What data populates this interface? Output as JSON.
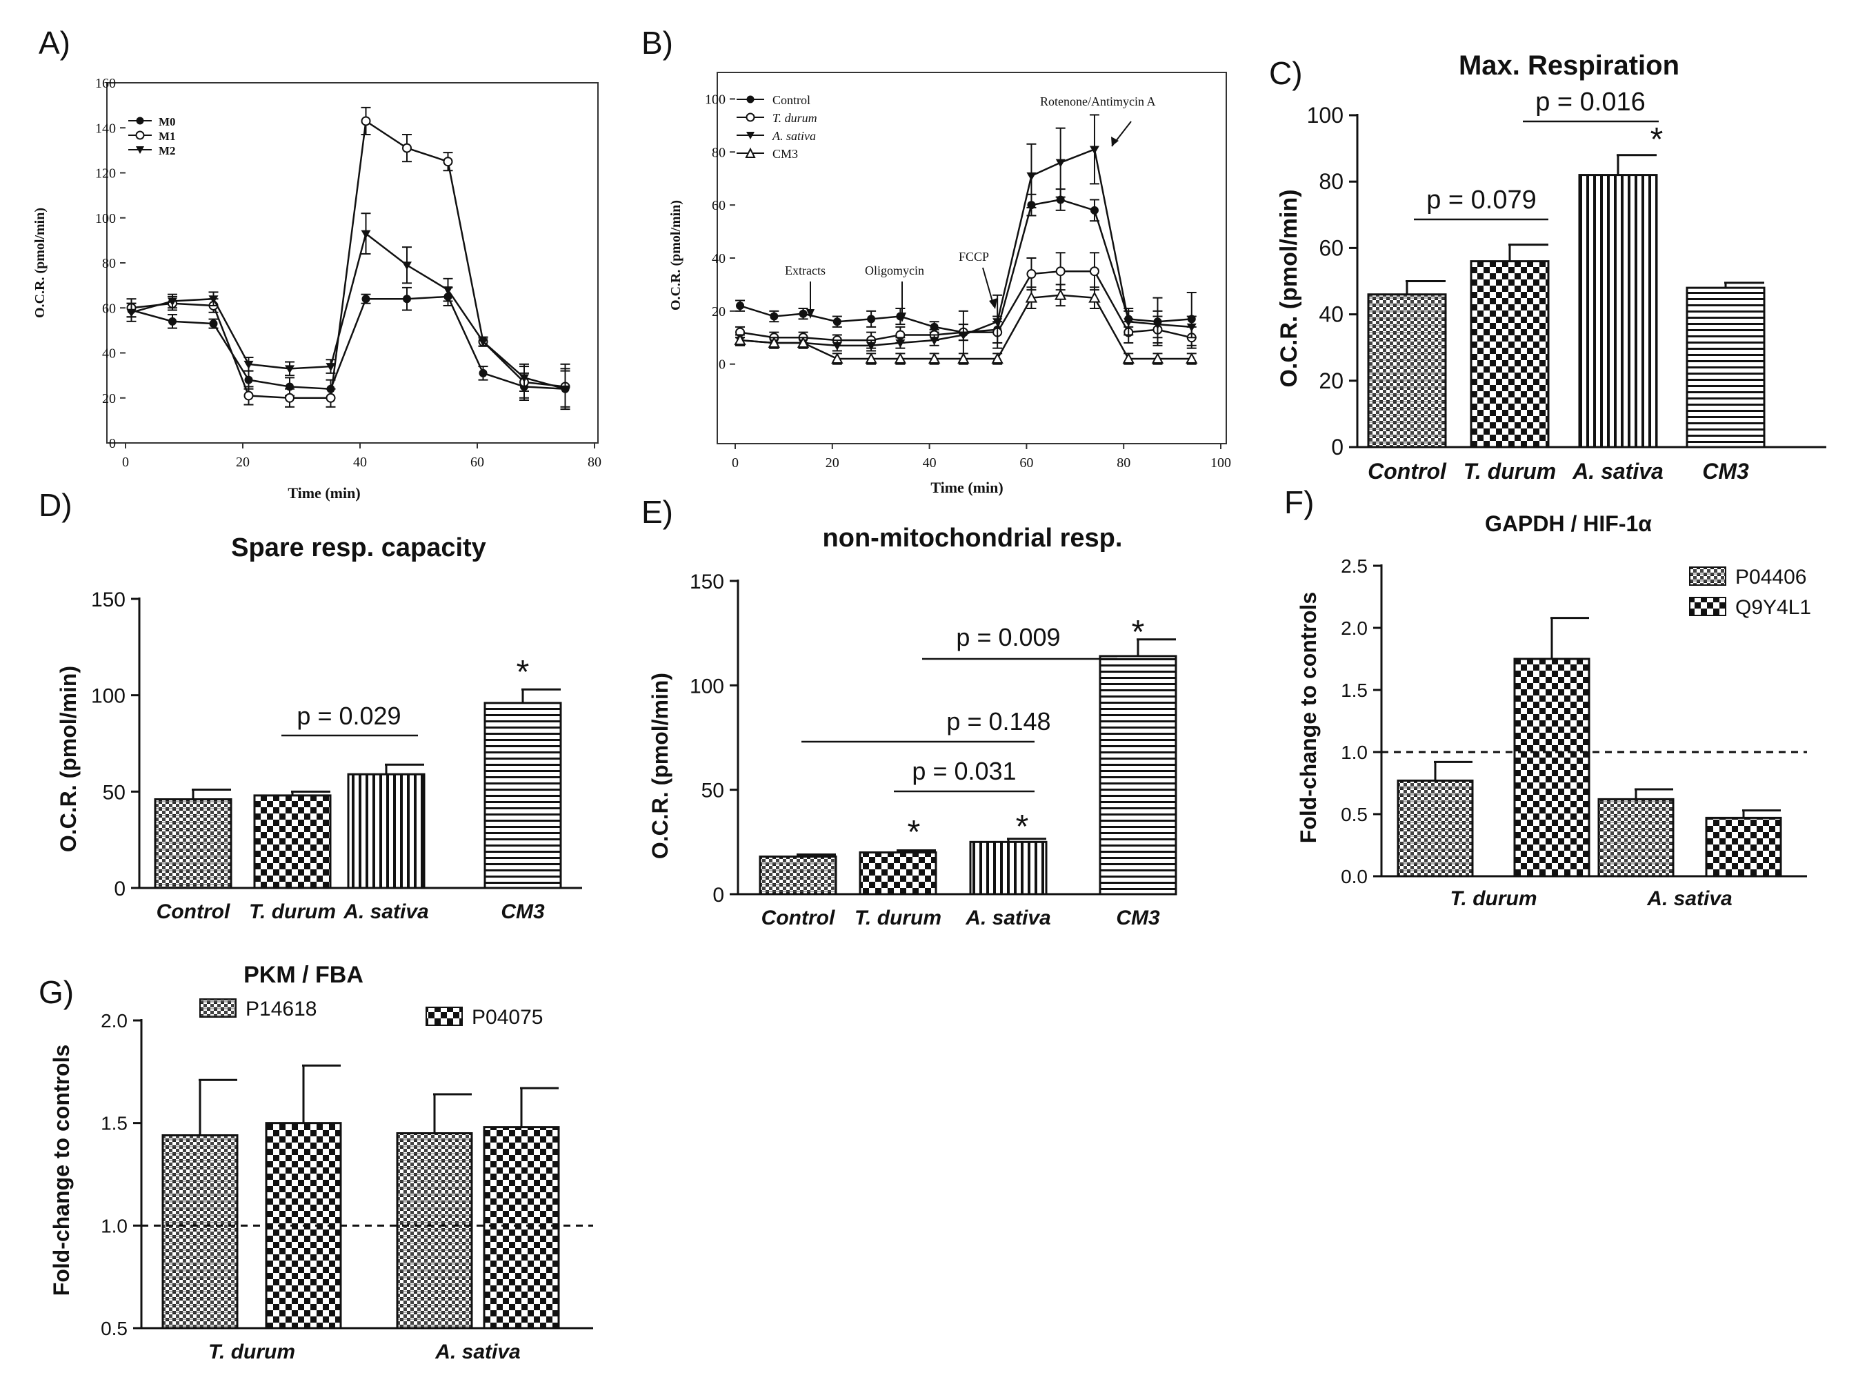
{
  "figure": {
    "title": ""
  },
  "panels": {
    "A": {
      "letter": "A)"
    },
    "B": {
      "letter": "B)",
      "annotations": {
        "extracts": "Extracts",
        "oligomycin": "Oligomycin",
        "fccp": "FCCP",
        "rotenone": "Rotenone/Antimycin A"
      }
    },
    "C": {
      "letter": "C)",
      "pvals": [
        "p = 0.079",
        "p = 0.016"
      ],
      "star": "*"
    },
    "D": {
      "letter": "D)",
      "pvals": [
        "p = 0.029"
      ],
      "star": "*"
    },
    "E": {
      "letter": "E)",
      "pvals": [
        "p = 0.009",
        "p = 0.148",
        "p = 0.031"
      ],
      "star": "*"
    },
    "F": {
      "letter": "F)"
    },
    "G": {
      "letter": "G)"
    }
  },
  "colors": {
    "ink": "#111111",
    "frame": "#333333",
    "background": "#ffffff"
  },
  "chart_data": [
    {
      "id": "A",
      "type": "line",
      "title": "",
      "xlabel": "Time (min)",
      "ylabel": "O.C.R. (pmol/min)",
      "xlim": [
        0,
        80
      ],
      "ylim": [
        0,
        160
      ],
      "xticks": [
        0,
        20,
        40,
        60,
        80
      ],
      "yticks": [
        0,
        20,
        40,
        60,
        80,
        100,
        120,
        140,
        160
      ],
      "x": [
        1,
        8,
        15,
        21,
        28,
        35,
        41,
        48,
        55,
        61,
        68,
        75
      ],
      "legend_position": "top-left",
      "series": [
        {
          "name": "M0",
          "marker": "filled-circle",
          "values": [
            59,
            54,
            53,
            28,
            25,
            24,
            64,
            64,
            65,
            31,
            25,
            24
          ],
          "errors": [
            3,
            3,
            2,
            4,
            4,
            4,
            2,
            5,
            4,
            3,
            6,
            8
          ]
        },
        {
          "name": "M1",
          "marker": "open-circle",
          "values": [
            60,
            62,
            61,
            21,
            20,
            20,
            143,
            131,
            125,
            45,
            27,
            25
          ],
          "errors": [
            4,
            3,
            3,
            4,
            4,
            4,
            6,
            6,
            4,
            2,
            7,
            10
          ]
        },
        {
          "name": "M2",
          "marker": "filled-triangle-down",
          "values": [
            58,
            63,
            64,
            35,
            33,
            34,
            93,
            79,
            68,
            45,
            29,
            24
          ],
          "errors": [
            4,
            3,
            3,
            3,
            3,
            3,
            9,
            8,
            5,
            2,
            6,
            9
          ]
        }
      ]
    },
    {
      "id": "B",
      "type": "line",
      "title": "",
      "xlabel": "Time (min)",
      "ylabel": "O.C.R. (pmol/min)",
      "xlim": [
        0,
        100
      ],
      "ylim": [
        -30,
        110
      ],
      "xticks": [
        0,
        20,
        40,
        60,
        80,
        100
      ],
      "yticks": [
        0,
        20,
        40,
        60,
        80,
        100
      ],
      "x": [
        1,
        8,
        14,
        21,
        28,
        34,
        41,
        47,
        54,
        61,
        67,
        74,
        81,
        87,
        94
      ],
      "legend_position": "top-left",
      "series": [
        {
          "name": "Control",
          "marker": "filled-circle",
          "values": [
            22,
            18,
            19,
            16,
            17,
            18,
            14,
            12,
            13,
            60,
            62,
            58,
            17,
            16,
            17
          ],
          "errors": [
            2,
            2,
            2,
            2,
            3,
            3,
            2,
            3,
            5,
            4,
            4,
            4,
            3,
            9,
            10
          ]
        },
        {
          "name": "T. durum",
          "marker": "open-circle",
          "values": [
            12,
            10,
            10,
            9,
            9,
            11,
            11,
            12,
            12,
            34,
            35,
            35,
            12,
            13,
            10
          ],
          "errors": [
            2,
            2,
            2,
            2,
            3,
            3,
            2,
            3,
            4,
            6,
            7,
            7,
            4,
            5,
            4
          ]
        },
        {
          "name": "A. sativa",
          "marker": "filled-triangle-down",
          "values": [
            9,
            8,
            8,
            7,
            7,
            8,
            9,
            11,
            16,
            71,
            76,
            81,
            16,
            15,
            14
          ],
          "errors": [
            2,
            2,
            2,
            2,
            2,
            2,
            2,
            9,
            10,
            12,
            13,
            13,
            5,
            5,
            4
          ]
        },
        {
          "name": "CM3",
          "marker": "open-triangle-up",
          "values": [
            9,
            8,
            8,
            2,
            2,
            2,
            2,
            2,
            2,
            25,
            26,
            25,
            2,
            2,
            2
          ],
          "errors": [
            2,
            2,
            2,
            2,
            2,
            2,
            2,
            2,
            2,
            4,
            4,
            4,
            2,
            2,
            2
          ]
        }
      ]
    },
    {
      "id": "C",
      "type": "bar",
      "title": "Max. Respiration",
      "xlabel": "",
      "ylabel": "O.C.R. (pmol/min)",
      "ylim": [
        0,
        100
      ],
      "yticks": [
        0,
        20,
        40,
        60,
        80,
        100
      ],
      "categories": [
        "Control",
        "T. durum",
        "A. sativa",
        "CM3"
      ],
      "values": [
        46,
        56,
        82,
        48
      ],
      "errors": [
        4,
        5,
        6,
        1.5
      ],
      "patterns": [
        "hatch-dense",
        "checker",
        "vstripe",
        "hstripe"
      ]
    },
    {
      "id": "D",
      "type": "bar",
      "title": "Spare resp. capacity",
      "xlabel": "",
      "ylabel": "O.C.R. (pmol/min)",
      "ylim": [
        0,
        150
      ],
      "yticks": [
        0,
        50,
        100,
        150
      ],
      "categories": [
        "Control",
        "T. durum",
        "A. sativa",
        "CM3"
      ],
      "values": [
        46,
        48,
        59,
        96
      ],
      "errors": [
        5,
        2,
        5,
        7
      ],
      "patterns": [
        "hatch-dense",
        "checker",
        "vstripe",
        "hstripe"
      ]
    },
    {
      "id": "E",
      "type": "bar",
      "title": "non-mitochondrial resp.",
      "xlabel": "",
      "ylabel": "O.C.R. (pmol/min)",
      "ylim": [
        0,
        150
      ],
      "yticks": [
        0,
        50,
        100,
        150
      ],
      "categories": [
        "Control",
        "T. durum",
        "A. sativa",
        "CM3"
      ],
      "values": [
        18,
        20,
        25,
        114
      ],
      "errors": [
        1,
        1,
        1.5,
        8
      ],
      "patterns": [
        "hatch-dense",
        "checker",
        "vstripe",
        "hstripe"
      ]
    },
    {
      "id": "F",
      "type": "bar",
      "title": "GAPDH / HIF-1α",
      "xlabel": "",
      "ylabel": "Fold-change to controls",
      "ylim": [
        0,
        2.5
      ],
      "yticks": [
        0.0,
        0.5,
        1.0,
        1.5,
        2.0,
        2.5
      ],
      "categories": [
        "T. durum",
        "A. sativa"
      ],
      "reference_line": 1.0,
      "legend_position": "top-right",
      "series": [
        {
          "name": "P04406",
          "pattern": "hatch-dense",
          "values": [
            0.77,
            0.62
          ],
          "errors": [
            0.15,
            0.08
          ]
        },
        {
          "name": "Q9Y4L1",
          "pattern": "checker",
          "values": [
            1.75,
            0.47
          ],
          "errors": [
            0.33,
            0.06
          ]
        }
      ]
    },
    {
      "id": "G",
      "type": "bar",
      "title": "PKM / FBA",
      "xlabel": "",
      "ylabel": "Fold-change to controls",
      "ylim": [
        0.5,
        2.0
      ],
      "yticks": [
        0.5,
        1.0,
        1.5,
        2.0
      ],
      "categories": [
        "T. durum",
        "A. sativa"
      ],
      "reference_line": 1.0,
      "legend_position": "top",
      "series": [
        {
          "name": "P14618",
          "pattern": "hatch-dense",
          "values": [
            1.44,
            1.45
          ],
          "errors": [
            0.27,
            0.19
          ]
        },
        {
          "name": "P04075",
          "pattern": "checker",
          "values": [
            1.5,
            1.48
          ],
          "errors": [
            0.28,
            0.19
          ]
        }
      ]
    }
  ]
}
